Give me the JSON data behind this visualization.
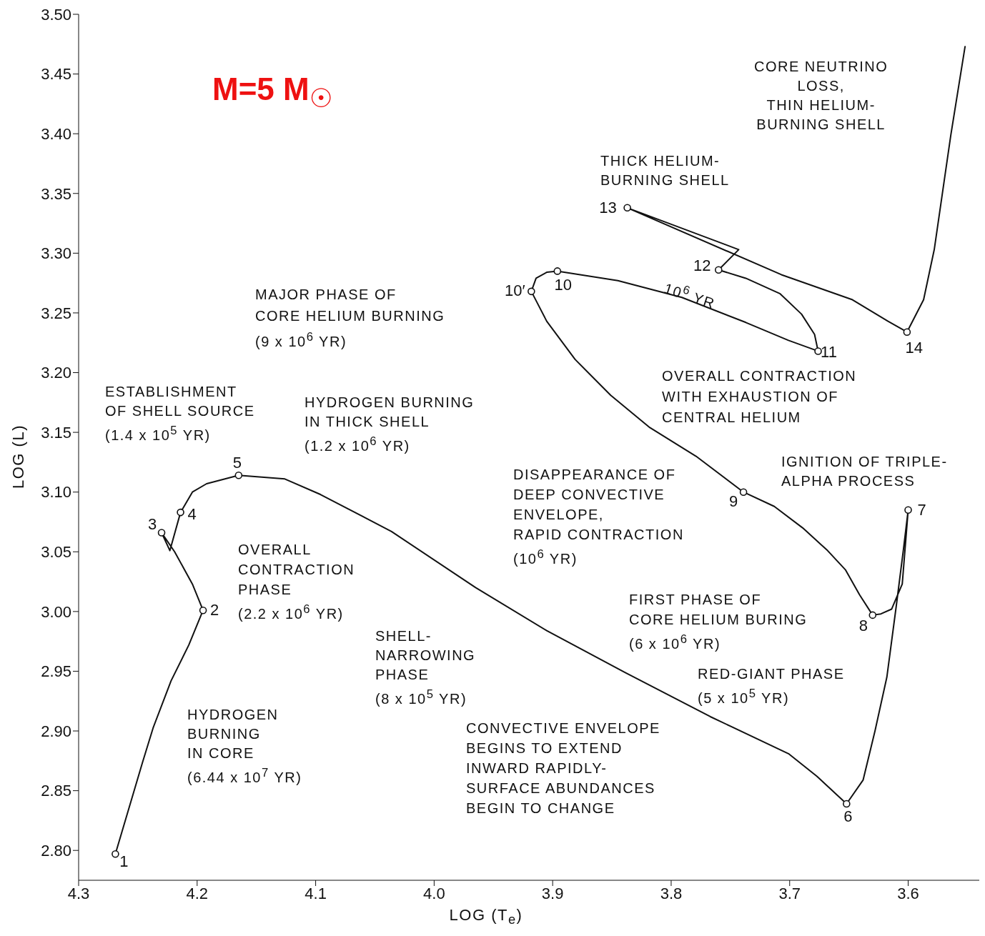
{
  "chart_data": {
    "type": "line",
    "title": "M=5 M$_{☉}$",
    "xlabel": "LOG (T$_{e}$)",
    "ylabel": "LOG (L)",
    "xlim": [
      4.3,
      3.54
    ],
    "ylim": [
      2.775,
      3.5
    ],
    "xticks": [
      4.3,
      4.2,
      4.1,
      {
        "value": 4,
        "label": "4.0"
      },
      3.9,
      3.8,
      3.7,
      3.6
    ],
    "yticks": [
      {
        "value": 2.8,
        "label": "2.80"
      },
      2.85,
      {
        "value": 2.9,
        "label": "2.90"
      },
      2.95,
      {
        "value": 3,
        "label": "3.00"
      },
      3.05,
      {
        "value": 3.1,
        "label": "3.10"
      },
      3.15,
      {
        "value": 3.2,
        "label": "3.20"
      },
      3.25,
      {
        "value": 3.3,
        "label": "3.30"
      },
      3.35,
      {
        "value": 3.4,
        "label": "3.40"
      },
      3.45,
      {
        "value": 3.5,
        "label": "3.50"
      }
    ],
    "series": [
      {
        "type": "line",
        "color": "#111111",
        "marker": "none",
        "line_style": "solid",
        "x": [
          4.269,
          4.246,
          4.237,
          4.222,
          4.207,
          4.195,
          4.204,
          4.219,
          4.23,
          4.223,
          4.214,
          4.204,
          4.192,
          4.165,
          4.126,
          4.096,
          4.036,
          3.965,
          3.905,
          3.839,
          3.767,
          3.701,
          3.677,
          3.652,
          3.638,
          3.628,
          3.618,
          3.61,
          3.604,
          3.6,
          3.605,
          3.614,
          3.623,
          3.63,
          3.641,
          3.653,
          3.668,
          3.689,
          3.713,
          3.739,
          3.779,
          3.818,
          3.851,
          3.881,
          3.905,
          3.918,
          3.914,
          3.905,
          3.896,
          3.845,
          3.791,
          3.737,
          3.701,
          3.676,
          3.679,
          3.69,
          3.708,
          3.737,
          3.76,
          3.743,
          3.837,
          3.707,
          3.647,
          3.617,
          3.601,
          3.587,
          3.578,
          3.564,
          3.552
        ],
        "values": [
          2.797,
          2.874,
          2.903,
          2.942,
          2.972,
          3.001,
          3.023,
          3.05,
          3.066,
          3.051,
          3.083,
          3.1,
          3.107,
          3.114,
          3.111,
          3.098,
          3.067,
          3.02,
          2.984,
          2.949,
          2.912,
          2.881,
          2.862,
          2.839,
          2.859,
          2.9,
          2.945,
          3.005,
          3.052,
          3.085,
          3.023,
          3.002,
          2.998,
          2.997,
          3.014,
          3.035,
          3.051,
          3.07,
          3.088,
          3.1,
          3.13,
          3.154,
          3.181,
          3.211,
          3.243,
          3.268,
          3.279,
          3.284,
          3.285,
          3.277,
          3.263,
          3.242,
          3.227,
          3.218,
          3.232,
          3.249,
          3.266,
          3.279,
          3.286,
          3.303,
          3.338,
          3.282,
          3.261,
          3.243,
          3.234,
          3.261,
          3.303,
          3.399,
          3.473
        ]
      },
      {
        "type": "scatter",
        "color": "#111111",
        "marker": "circle",
        "x": [
          4.269,
          4.195,
          4.23,
          4.214,
          4.165,
          3.652,
          3.6,
          3.63,
          3.739,
          3.918,
          3.896,
          3.676,
          3.76,
          3.837,
          3.601
        ],
        "values": [
          2.797,
          3.001,
          3.066,
          3.083,
          3.114,
          2.839,
          3.085,
          2.997,
          3.1,
          3.268,
          3.285,
          3.218,
          3.286,
          3.338,
          3.234
        ]
      }
    ],
    "annotations": [
      "CORE NEUTRINO\nLOSS,\nTHIN HELIUM-\nBURNING SHELL",
      "THICK HELIUM-\nBURNING SHELL",
      "MAJOR PHASE OF\nCORE HELIUM BURNING\n(9 x 10$^{6}$ YR)",
      "10$^{6}$ YR",
      "OVERALL CONTRACTION\nWITH EXHAUSTION OF\nCENTRAL HELIUM",
      "ESTABLISHMENT\nOF SHELL SOURCE\n(1.4 x 10$^{5}$ YR)",
      "HYDROGEN BURNING\nIN THICK SHELL\n(1.2 x 10$^{6}$ YR)",
      "IGNITION OF TRIPLE-\nALPHA PROCESS",
      "DISAPPEARANCE OF\nDEEP CONVECTIVE\nENVELOPE,\nRAPID CONTRACTION\n(10$^{6}$ YR)",
      "OVERALL\nCONTRACTION\nPHASE\n(2.2 x 10$^{6}$ YR)",
      "FIRST PHASE OF\nCORE HELIUM BURING\n(6 x 10$^{6}$ YR)",
      "SHELL-\nNARROWING\nPHASE\n(8 x 10$^{5}$ YR)",
      "RED-GIANT PHASE\n(5 x 10$^{5}$ YR)",
      "HYDROGEN\nBURNING\nIN CORE\n(6.44 x 10$^{7}$ YR)",
      "CONVECTIVE ENVELOPE\nBEGINS TO EXTEND\nINWARD RAPIDLY-\nSURFACE ABUNDANCES\nBEGIN TO CHANGE",
      {
        "text": "1",
        "x": 4.269,
        "y": 2.797
      },
      {
        "text": "2",
        "x": 4.195,
        "y": 3.001
      },
      {
        "text": "3",
        "x": 4.23,
        "y": 3.066
      },
      {
        "text": "4",
        "x": 4.214,
        "y": 3.083
      },
      {
        "text": "5",
        "x": 4.165,
        "y": 3.114
      },
      {
        "text": "6",
        "x": 3.652,
        "y": 2.839
      },
      {
        "text": "7",
        "x": 3.6,
        "y": 3.085
      },
      {
        "text": "8",
        "x": 3.63,
        "y": 2.997
      },
      {
        "text": "9",
        "x": 3.739,
        "y": 3.1
      },
      {
        "text": "10′",
        "x": 3.918,
        "y": 3.268
      },
      {
        "text": "10",
        "x": 3.896,
        "y": 3.285
      },
      {
        "text": "11",
        "x": 3.676,
        "y": 3.218
      },
      {
        "text": "12",
        "x": 3.76,
        "y": 3.286
      },
      {
        "text": "13",
        "x": 3.837,
        "y": 3.338
      },
      {
        "text": "14",
        "x": 3.601,
        "y": 3.234
      }
    ]
  }
}
